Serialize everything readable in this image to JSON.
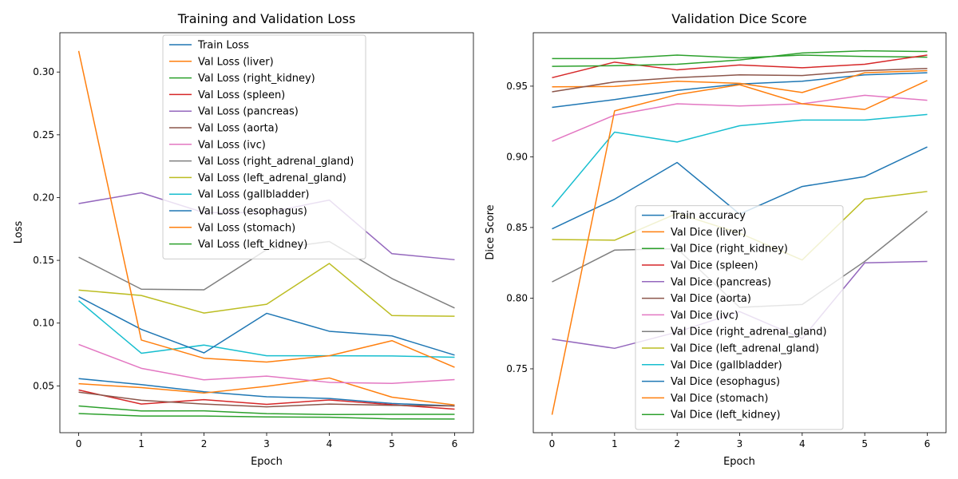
{
  "chart_data": [
    {
      "type": "line",
      "title": "Training and Validation Loss",
      "xlabel": "Epoch",
      "ylabel": "Loss",
      "x": [
        0,
        1,
        2,
        3,
        4,
        5,
        6
      ],
      "xlim": [
        -0.3,
        6.3
      ],
      "ylim": [
        0.0127,
        0.3313
      ],
      "xticks": [
        0,
        1,
        2,
        3,
        4,
        5,
        6
      ],
      "yticks": [
        0.05,
        0.1,
        0.15,
        0.2,
        0.25,
        0.3
      ],
      "ytick_labels": [
        "0.05",
        "0.10",
        "0.15",
        "0.20",
        "0.25",
        "0.30"
      ],
      "grid": false,
      "legend_position": "upper-center",
      "series": [
        {
          "name": "Train Loss",
          "color": "#1f77b4",
          "values": [
            0.0558,
            0.051,
            0.0453,
            0.0413,
            0.04,
            0.036,
            0.034
          ]
        },
        {
          "name": "Val Loss (liver)",
          "color": "#ff7f0e",
          "values": [
            0.0517,
            0.0486,
            0.0443,
            0.0497,
            0.0563,
            0.041,
            0.0348
          ]
        },
        {
          "name": "Val Loss (right_kidney)",
          "color": "#2ca02c",
          "values": [
            0.034,
            0.03,
            0.0301,
            0.0279,
            0.0272,
            0.0273,
            0.0273
          ]
        },
        {
          "name": "Val Loss (spleen)",
          "color": "#d62728",
          "values": [
            0.0467,
            0.0355,
            0.039,
            0.0353,
            0.0388,
            0.035,
            0.0315
          ]
        },
        {
          "name": "Val Loss (pancreas)",
          "color": "#9467bd",
          "values": [
            0.1952,
            0.2038,
            0.188,
            0.188,
            0.198,
            0.1553,
            0.1505
          ]
        },
        {
          "name": "Val Loss (aorta)",
          "color": "#8c564b",
          "values": [
            0.045,
            0.0385,
            0.0355,
            0.0333,
            0.0355,
            0.0345,
            0.034
          ]
        },
        {
          "name": "Val Loss (ivc)",
          "color": "#e377c2",
          "values": [
            0.083,
            0.064,
            0.0548,
            0.0578,
            0.0528,
            0.052,
            0.055
          ]
        },
        {
          "name": "Val Loss (right_adrenal_gland)",
          "color": "#7f7f7f",
          "values": [
            0.1525,
            0.127,
            0.1265,
            0.1585,
            0.165,
            0.1355,
            0.112
          ]
        },
        {
          "name": "Val Loss (left_adrenal_gland)",
          "color": "#bcbd22",
          "values": [
            0.1263,
            0.122,
            0.108,
            0.115,
            0.1475,
            0.106,
            0.1055
          ]
        },
        {
          "name": "Val Loss (gallbladder)",
          "color": "#17becf",
          "values": [
            0.1178,
            0.076,
            0.0825,
            0.074,
            0.074,
            0.0738,
            0.0728
          ]
        },
        {
          "name": "Val Loss (esophagus)",
          "color": "#1f77b4",
          "values": [
            0.121,
            0.095,
            0.0763,
            0.1078,
            0.0935,
            0.0898,
            0.0745
          ]
        },
        {
          "name": "Val Loss (stomach)",
          "color": "#ff7f0e",
          "values": [
            0.3168,
            0.0865,
            0.072,
            0.069,
            0.074,
            0.086,
            0.0648
          ]
        },
        {
          "name": "Val Loss (left_kidney)",
          "color": "#2ca02c",
          "values": [
            0.028,
            0.026,
            0.026,
            0.0253,
            0.025,
            0.0237,
            0.0236
          ]
        }
      ]
    },
    {
      "type": "line",
      "title": "Validation Dice Score",
      "xlabel": "Epoch",
      "ylabel": "Dice Score",
      "x": [
        0,
        1,
        2,
        3,
        4,
        5,
        6
      ],
      "xlim": [
        -0.3,
        6.3
      ],
      "ylim": [
        0.7048,
        0.9878
      ],
      "xticks": [
        0,
        1,
        2,
        3,
        4,
        5,
        6
      ],
      "yticks": [
        0.75,
        0.8,
        0.85,
        0.9,
        0.95
      ],
      "ytick_labels": [
        "0.75",
        "0.80",
        "0.85",
        "0.90",
        "0.95"
      ],
      "grid": false,
      "legend_position": "lower-center",
      "series": [
        {
          "name": "Train accuracy",
          "color": "#1f77b4",
          "values": [
            0.935,
            0.9405,
            0.947,
            0.9515,
            0.9535,
            0.958,
            0.9595
          ]
        },
        {
          "name": "Val Dice (liver)",
          "color": "#ff7f0e",
          "values": [
            0.9495,
            0.9498,
            0.9535,
            0.952,
            0.9455,
            0.9595,
            0.961
          ]
        },
        {
          "name": "Val Dice (right_kidney)",
          "color": "#2ca02c",
          "values": [
            0.9695,
            0.9695,
            0.972,
            0.97,
            0.972,
            0.971,
            0.9705
          ]
        },
        {
          "name": "Val Dice (spleen)",
          "color": "#d62728",
          "values": [
            0.956,
            0.967,
            0.9615,
            0.965,
            0.963,
            0.9655,
            0.972
          ]
        },
        {
          "name": "Val Dice (pancreas)",
          "color": "#9467bd",
          "values": [
            0.771,
            0.7645,
            0.776,
            0.7905,
            0.7715,
            0.825,
            0.826
          ]
        },
        {
          "name": "Val Dice (aorta)",
          "color": "#8c564b",
          "values": [
            0.946,
            0.953,
            0.956,
            0.958,
            0.9575,
            0.961,
            0.9625
          ]
        },
        {
          "name": "Val Dice (ivc)",
          "color": "#e377c2",
          "values": [
            0.911,
            0.9295,
            0.9375,
            0.936,
            0.9375,
            0.9435,
            0.94
          ]
        },
        {
          "name": "Val Dice (right_adrenal_gland)",
          "color": "#7f7f7f",
          "values": [
            0.8115,
            0.834,
            0.835,
            0.7935,
            0.7955,
            0.826,
            0.8615
          ]
        },
        {
          "name": "Val Dice (left_adrenal_gland)",
          "color": "#bcbd22",
          "values": [
            0.8415,
            0.841,
            0.86,
            0.846,
            0.827,
            0.87,
            0.8755
          ]
        },
        {
          "name": "Val Dice (gallbladder)",
          "color": "#17becf",
          "values": [
            0.8645,
            0.9175,
            0.9105,
            0.922,
            0.926,
            0.926,
            0.93
          ]
        },
        {
          "name": "Val Dice (esophagus)",
          "color": "#1f77b4",
          "values": [
            0.849,
            0.87,
            0.896,
            0.8595,
            0.879,
            0.886,
            0.907
          ]
        },
        {
          "name": "Val Dice (stomach)",
          "color": "#ff7f0e",
          "values": [
            0.7175,
            0.9325,
            0.944,
            0.951,
            0.9375,
            0.9335,
            0.954
          ]
        },
        {
          "name": "Val Dice (left_kidney)",
          "color": "#2ca02c",
          "values": [
            0.964,
            0.9645,
            0.9655,
            0.9685,
            0.9735,
            0.975,
            0.9745
          ]
        }
      ]
    }
  ]
}
